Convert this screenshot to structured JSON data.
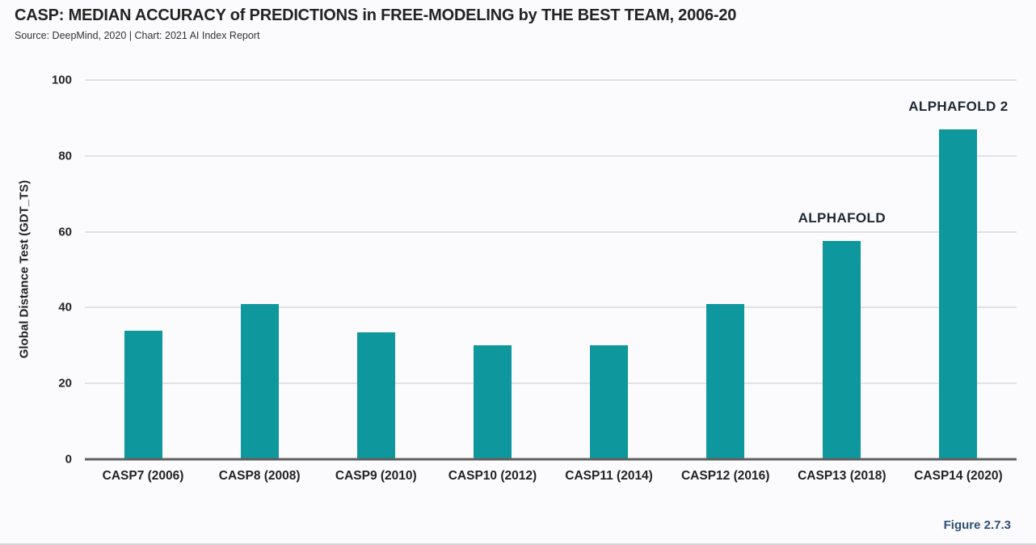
{
  "header": {
    "title": "CASP: MEDIAN ACCURACY of PREDICTIONS in FREE-MODELING by THE BEST TEAM, 2006-20",
    "subtitle": "Source: DeepMind, 2020 | Chart: 2021 AI Index Report"
  },
  "figure_label": "Figure 2.7.3",
  "colors": {
    "bar_teal": "#0e979d",
    "figure_label_navy": "#2d4f76",
    "annotation_dark": "#1e2836",
    "gridline_gray": "#c9c9cd",
    "baseline_gray": "#616161",
    "background": "#fbfafc"
  },
  "chart_data": {
    "type": "bar",
    "title": "CASP: MEDIAN ACCURACY of PREDICTIONS in FREE-MODELING by THE BEST TEAM, 2006-20",
    "subtitle": "Source: DeepMind, 2020 | Chart: 2021 AI Index Report",
    "categories": [
      "CASP7 (2006)",
      "CASP8 (2008)",
      "CASP9 (2010)",
      "CASP10 (2012)",
      "CASP11 (2014)",
      "CASP12 (2016)",
      "CASP13 (2018)",
      "CASP14 (2020)"
    ],
    "values": [
      34,
      41,
      33.5,
      30,
      30,
      41,
      57.5,
      87
    ],
    "xlabel": "",
    "ylabel": "Global Distance Test (GDT_TS)",
    "ylim": [
      0,
      100
    ],
    "yticks": [
      0,
      20,
      40,
      60,
      80,
      100
    ],
    "grid": true,
    "legend": "none",
    "bar_color": "#0e979d",
    "annotations": [
      {
        "category_index": 6,
        "text": "ALPHAFOLD"
      },
      {
        "category_index": 7,
        "text": "ALPHAFOLD 2"
      }
    ]
  }
}
